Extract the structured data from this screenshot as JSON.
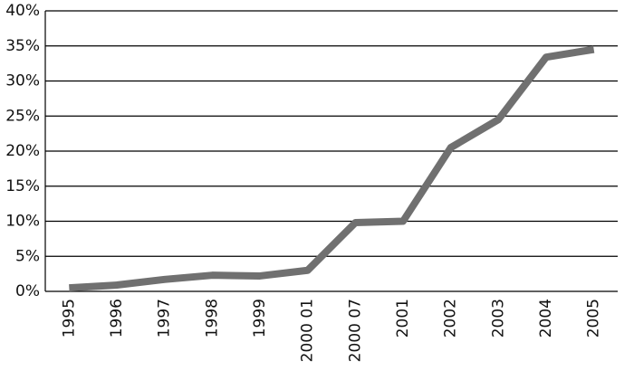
{
  "chart_data": {
    "type": "line",
    "categories": [
      "1995",
      "1996",
      "1997",
      "1998",
      "1999",
      "2000 01",
      "2000 07",
      "2001",
      "2002",
      "2003",
      "2004",
      "2005"
    ],
    "values": [
      0.5,
      0.9,
      1.7,
      2.3,
      2.2,
      3.0,
      9.8,
      10.0,
      20.5,
      24.5,
      33.4,
      34.5
    ],
    "color": "#707070",
    "ylim": [
      0,
      40
    ],
    "yticks": [
      {
        "value": 0,
        "label": "0%"
      },
      {
        "value": 5,
        "label": "5%"
      },
      {
        "value": 10,
        "label": "10%"
      },
      {
        "value": 15,
        "label": "15%"
      },
      {
        "value": 20,
        "label": "20%"
      },
      {
        "value": 25,
        "label": "25%"
      },
      {
        "value": 30,
        "label": "30%"
      },
      {
        "value": 35,
        "label": "35%"
      },
      {
        "value": 40,
        "label": "40%"
      }
    ],
    "grid": true
  }
}
